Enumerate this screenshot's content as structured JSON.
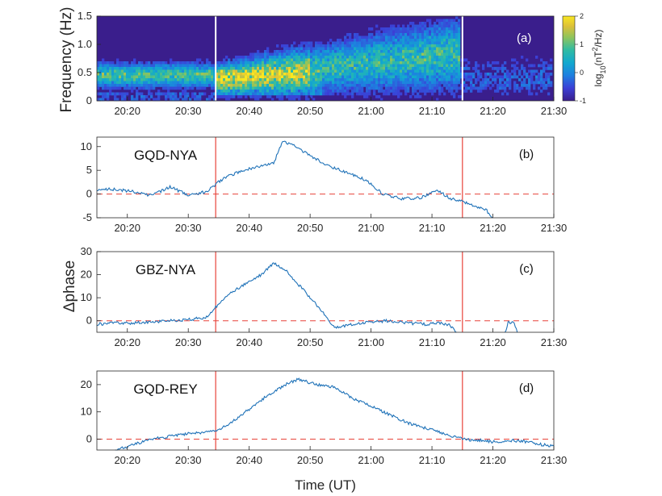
{
  "chart_data": [
    {
      "panel": "a",
      "type": "heatmap",
      "label": "(a)",
      "ylabel": "Frequency (Hz)",
      "ylim": [
        0,
        1.5
      ],
      "yticks": [
        "0",
        "0.5",
        "1.0",
        "1.5"
      ],
      "xlim": [
        "20:15",
        "21:30"
      ],
      "xticks": [
        "20:20",
        "20:30",
        "20:40",
        "20:50",
        "21:00",
        "21:10",
        "21:20",
        "21:30"
      ],
      "markers": [
        "20:34.5",
        "21:15"
      ],
      "colorbar": {
        "label_main": "log",
        "label_sub": "10",
        "label_rest": "(nT",
        "label_sup": "2",
        "label_end": "/Hz)",
        "range": [
          -1,
          2
        ],
        "ticks": [
          "-1",
          "0",
          "1",
          "2"
        ]
      },
      "color_min": "#3a1e8c",
      "color_max": "#f9e721"
    },
    {
      "panel": "b",
      "type": "line",
      "name": "GQD-NYA",
      "label": "(b)",
      "ylim": [
        -5,
        12
      ],
      "yticks": [
        "-5",
        "0",
        "5",
        "10"
      ],
      "xticks": [
        "20:20",
        "20:30",
        "20:40",
        "20:50",
        "21:00",
        "21:10",
        "21:20",
        "21:30"
      ],
      "x": [
        "20:15",
        "20:18",
        "20:21",
        "20:24",
        "20:27",
        "20:30",
        "20:33",
        "20:34.5",
        "20:36",
        "20:39",
        "20:42",
        "20:44",
        "20:45.5",
        "20:47",
        "20:50",
        "20:53",
        "20:56",
        "20:59",
        "21:02",
        "21:05",
        "21:08",
        "21:11",
        "21:13",
        "21:15",
        "21:17",
        "21:19",
        "21:20"
      ],
      "y": [
        1,
        1,
        0.5,
        -0.3,
        1.5,
        -0.2,
        0.5,
        2,
        3.5,
        5,
        6,
        6.5,
        11,
        10.5,
        8,
        6,
        4.5,
        3,
        0,
        -1,
        -0.8,
        0.8,
        -1,
        -1.5,
        -2.5,
        -3.5,
        -5
      ],
      "reference_y": 0,
      "markers": [
        "20:34.5",
        "21:15"
      ]
    },
    {
      "panel": "c",
      "type": "line",
      "name": "GBZ-NYA",
      "label": "(c)",
      "ylabel": "Δphase",
      "ylim": [
        -5,
        30
      ],
      "yticks": [
        "0",
        "10",
        "20",
        "30"
      ],
      "xticks": [
        "20:20",
        "20:30",
        "20:40",
        "20:50",
        "21:00",
        "21:10",
        "21:20",
        "21:30"
      ],
      "x": [
        "20:15",
        "20:18",
        "20:21",
        "20:24",
        "20:27",
        "20:30",
        "20:33",
        "20:34.5",
        "20:37",
        "20:40",
        "20:42",
        "20:44",
        "20:46",
        "20:48",
        "20:50",
        "20:52",
        "20:54",
        "20:56",
        "20:58",
        "21:00",
        "21:03",
        "21:06",
        "21:09",
        "21:11",
        "21:13",
        "21:14"
      ],
      "y": [
        -1.5,
        -1,
        -1,
        -0.5,
        0,
        0.5,
        1.5,
        6,
        12,
        17,
        20,
        25,
        22,
        16,
        10,
        4,
        -3,
        -2,
        -1,
        -0.5,
        0,
        -1,
        -1.5,
        -1,
        -2,
        -5
      ],
      "segment2": {
        "x": [
          "21:22",
          "21:22.5",
          "21:23",
          "21:23.5",
          "21:24"
        ],
        "y": [
          -5,
          -1,
          -0.5,
          -1,
          -5
        ]
      },
      "reference_y": 0,
      "markers": [
        "20:34.5",
        "21:15"
      ]
    },
    {
      "panel": "d",
      "type": "line",
      "name": "GQD-REY",
      "label": "(d)",
      "ylim": [
        -4,
        25
      ],
      "yticks": [
        "0",
        "10",
        "20"
      ],
      "xlabel": "Time (UT)",
      "xticks": [
        "20:20",
        "20:30",
        "20:40",
        "20:50",
        "21:00",
        "21:10",
        "21:20",
        "21:30"
      ],
      "x": [
        "20:18",
        "20:21",
        "20:24",
        "20:27",
        "20:30",
        "20:33",
        "20:34.5",
        "20:37",
        "20:40",
        "20:43",
        "20:46",
        "20:48",
        "20:51",
        "20:54",
        "20:57",
        "21:00",
        "21:03",
        "21:06",
        "21:09",
        "21:12",
        "21:15",
        "21:18",
        "21:20",
        "21:23",
        "21:26",
        "21:28",
        "21:30"
      ],
      "y": [
        -4,
        -2,
        0,
        1,
        2,
        2.5,
        3,
        6,
        11,
        16,
        20,
        22,
        20,
        19,
        15,
        12,
        9,
        6,
        4,
        2,
        0,
        -0.5,
        -1,
        -0.5,
        -1,
        -2,
        -2.5
      ],
      "reference_y": 0,
      "markers": [
        "20:34.5",
        "21:15"
      ]
    }
  ]
}
